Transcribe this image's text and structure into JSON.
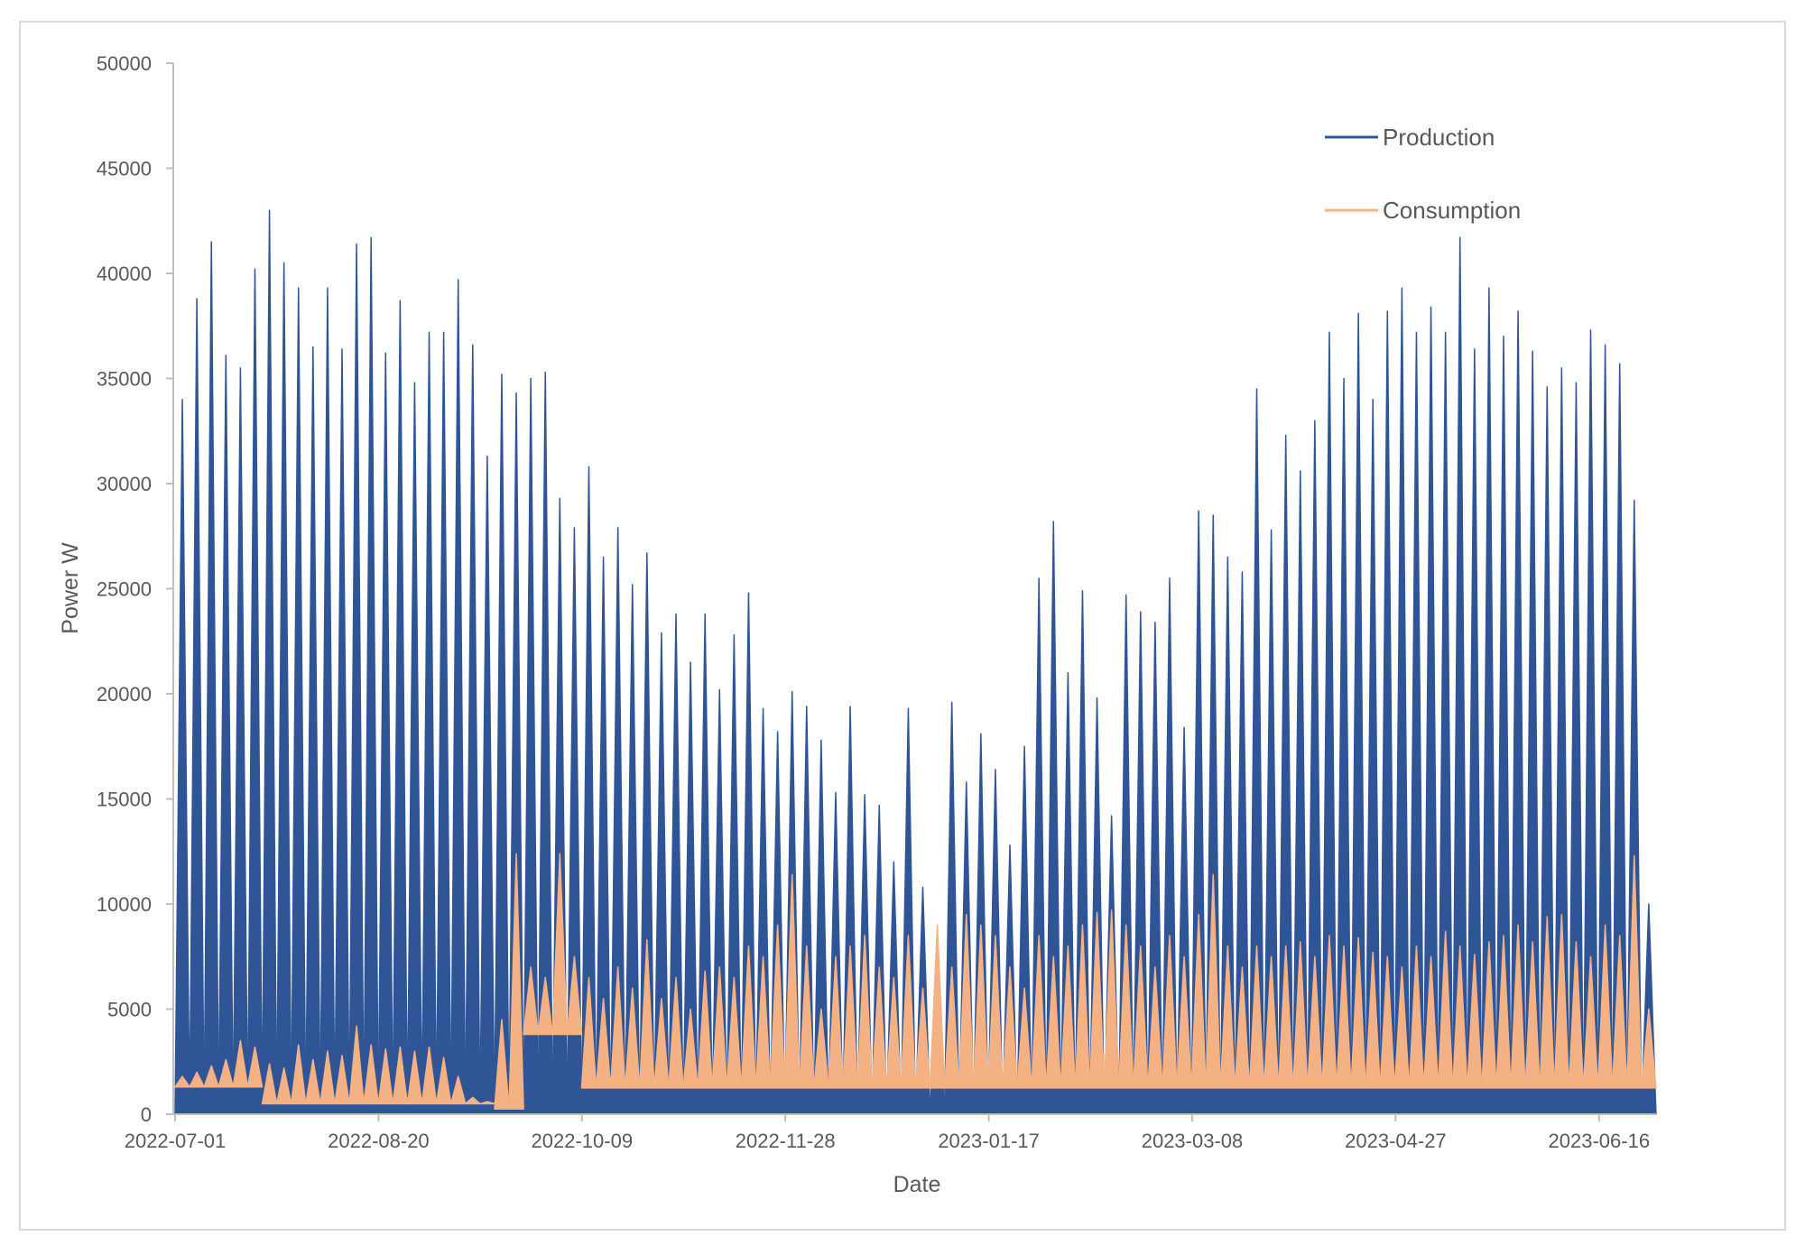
{
  "chart_data": {
    "type": "line",
    "title": "",
    "xlabel": "Date",
    "ylabel": "Power W",
    "ylim": [
      0,
      50000
    ],
    "xlim": [
      "2022-07-01",
      "2023-06-30"
    ],
    "y_ticks": [
      "0",
      "5000",
      "10000",
      "15000",
      "20000",
      "25000",
      "30000",
      "35000",
      "40000",
      "45000",
      "50000"
    ],
    "x_ticks": [
      "2022-07-01",
      "2022-08-20",
      "2022-10-09",
      "2022-11-28",
      "2023-01-17",
      "2023-03-08",
      "2023-04-27",
      "2023-06-16"
    ],
    "grid": false,
    "legend_placement": "top-right",
    "colors": {
      "production": "#2F5597",
      "consumption": "#F4B183",
      "axis": "#BFBFBF",
      "frame": "#D9D9D9"
    },
    "series": [
      {
        "name": "Production",
        "color": "#2F5597",
        "floor": 0,
        "peaks": [
          34000,
          38800,
          41500,
          36100,
          35500,
          40200,
          43000,
          40500,
          39300,
          36500,
          39300,
          36400,
          41400,
          41700,
          36200,
          38700,
          34800,
          37200,
          37200,
          39700,
          36600,
          31300,
          35200,
          34300,
          35000,
          35300,
          29300,
          27900,
          30800,
          26500,
          27900,
          25200,
          26700,
          22900,
          23800,
          21500,
          23800,
          20200,
          22800,
          24800,
          19300,
          18200,
          20100,
          19400,
          17800,
          15300,
          19400,
          15200,
          14700,
          12000,
          19300,
          10800,
          7700,
          19600,
          15800,
          18100,
          16400,
          12800,
          17500,
          25500,
          28200,
          21000,
          24900,
          19800,
          14200,
          24700,
          23900,
          23400,
          25500,
          18400,
          28700,
          28500,
          26500,
          25800,
          34500,
          27800,
          32300,
          30600,
          33000,
          37200,
          35000,
          38100,
          34000,
          38200,
          39300,
          37200,
          38400,
          37200,
          41700,
          36400,
          39300,
          37000,
          38200,
          36300,
          34600,
          35500,
          34800,
          37300,
          36600,
          35700,
          29200,
          10000
        ]
      },
      {
        "name": "Consumption",
        "color": "#F4B183",
        "floor_steps": [
          {
            "from": "2022-07-01",
            "value": 1300
          },
          {
            "from": "2022-07-21",
            "value": 500
          },
          {
            "from": "2022-09-14",
            "value": 250
          },
          {
            "from": "2022-09-22",
            "value": 3800
          },
          {
            "from": "2022-10-07",
            "value": 1250
          }
        ],
        "peaks": [
          1800,
          2000,
          2300,
          2600,
          3500,
          3200,
          2400,
          2200,
          3300,
          2600,
          3000,
          2800,
          4200,
          3300,
          3100,
          3200,
          3000,
          3200,
          2700,
          1800,
          800,
          600,
          4500,
          12400,
          7000,
          6500,
          12400,
          7500,
          6500,
          5500,
          7000,
          6000,
          8300,
          5500,
          6500,
          5000,
          6800,
          7000,
          6500,
          8000,
          7500,
          9000,
          11400,
          8000,
          5000,
          7500,
          8000,
          8500,
          7000,
          6500,
          8500,
          6000,
          9000,
          7000,
          9500,
          9000,
          8500,
          7000,
          6000,
          8500,
          7500,
          8000,
          9000,
          9600,
          9700,
          9000,
          8000,
          7000,
          8500,
          7500,
          9500,
          11400,
          8000,
          7000,
          8000,
          7500,
          8000,
          8200,
          7500,
          8500,
          8000,
          8400,
          7700,
          7500,
          7000,
          8000,
          7500,
          8700,
          8000,
          7600,
          8200,
          8500,
          9000,
          8200,
          9400,
          9500,
          8200,
          7500,
          9000,
          8500,
          12300,
          5000
        ]
      }
    ]
  }
}
